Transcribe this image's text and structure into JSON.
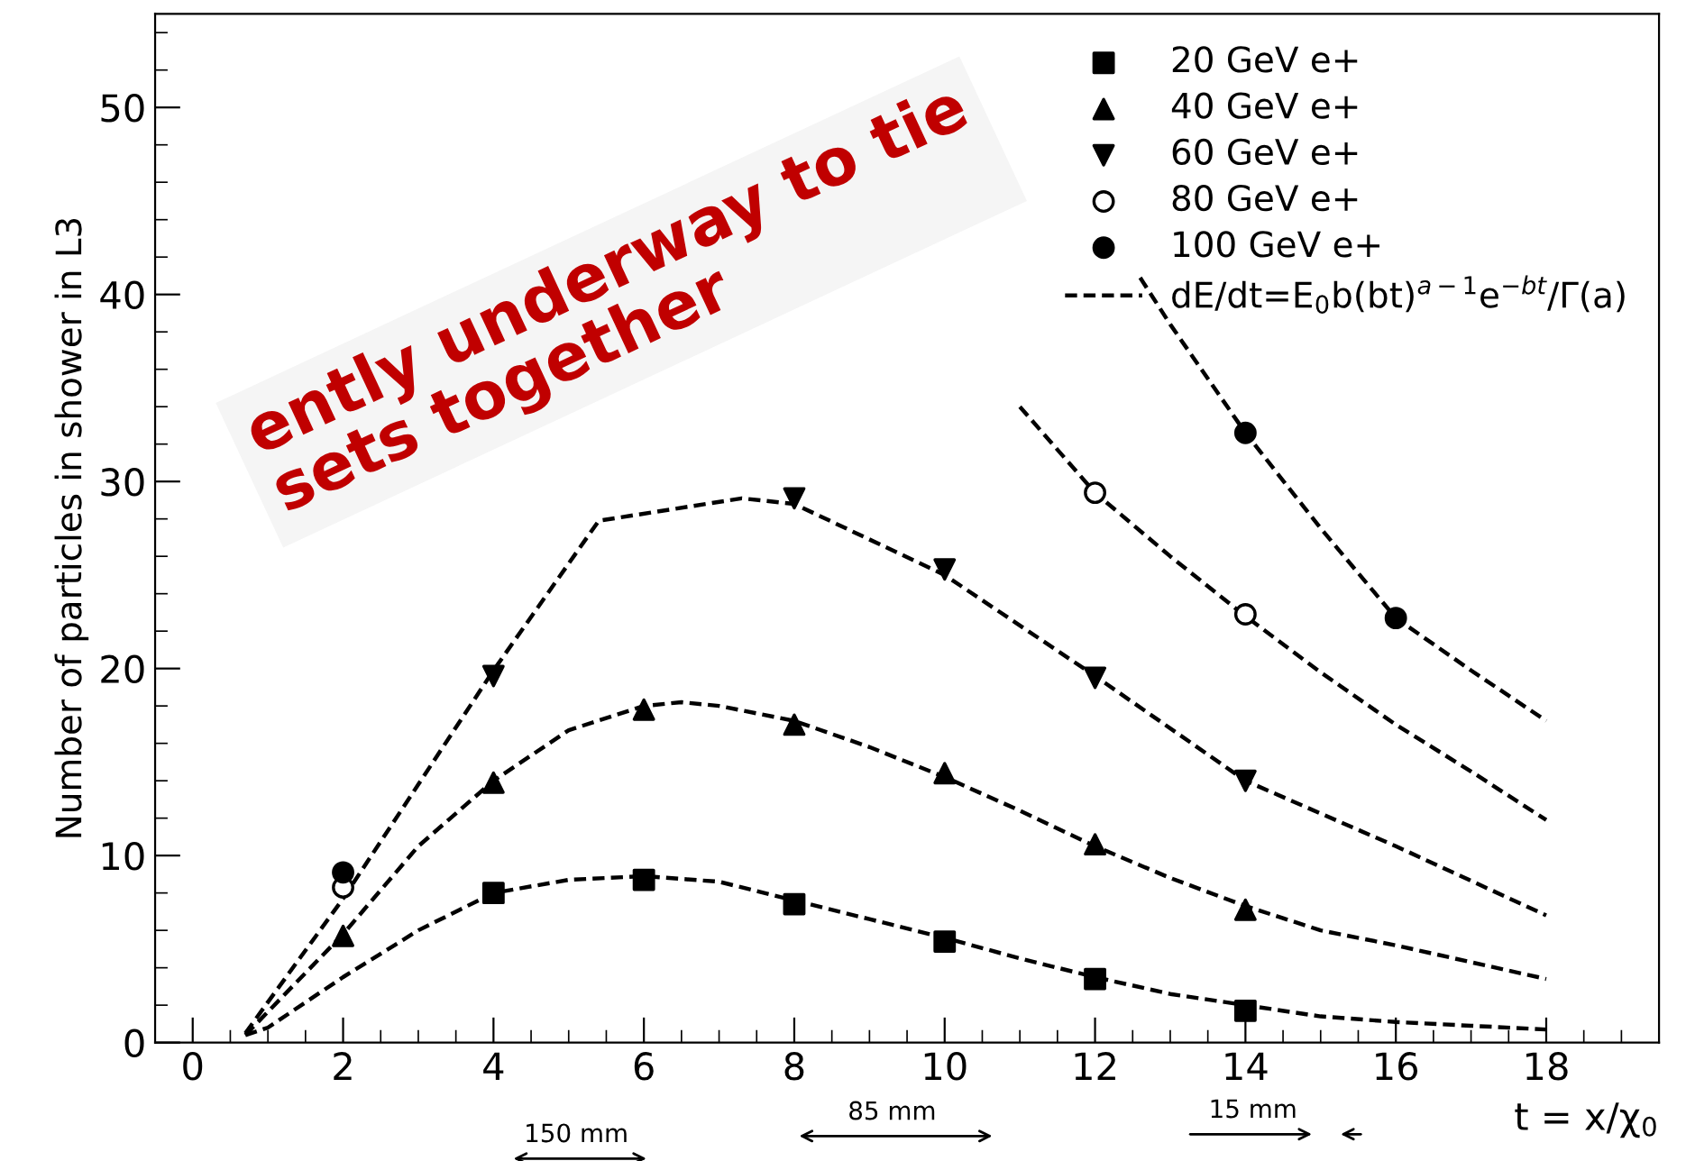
{
  "chart_data": {
    "type": "scatter",
    "ylabel": "Number of particles in shower in L3",
    "xlabel": "t = x/χ$_{0}$",
    "xlim": [
      -0.5,
      19.5
    ],
    "xticks": [
      0,
      2,
      4,
      6,
      8,
      10,
      12,
      14,
      16,
      18
    ],
    "ylim": [
      0,
      55
    ],
    "yticks": [
      0,
      10,
      20,
      30,
      40,
      50
    ],
    "grid": false,
    "legend": "top right",
    "series": [
      {
        "name": "20 GeV e+",
        "marker": "square",
        "color": "#000000",
        "x": [
          4,
          6,
          8,
          10,
          12,
          14
        ],
        "values": [
          8.0,
          8.7,
          7.4,
          5.4,
          3.4,
          1.7
        ]
      },
      {
        "name": "40 GeV e+",
        "marker": "triangle",
        "color": "#000000",
        "x": [
          2,
          4,
          6,
          8,
          10,
          12,
          14
        ],
        "values": [
          5.7,
          13.9,
          17.8,
          17.0,
          14.4,
          10.6,
          7.1
        ]
      },
      {
        "name": "60 GeV e+",
        "marker": "triangle-down",
        "color": "#000000",
        "x": [
          4,
          6,
          8,
          10,
          12,
          14
        ],
        "values": [
          19.6,
          null,
          29.1,
          25.3,
          19.5,
          14.0
        ]
      },
      {
        "name": "80 GeV e+",
        "marker": "open-circle",
        "color": "#000000",
        "x": [
          2,
          4,
          6,
          8,
          10,
          12,
          14
        ],
        "values": [
          8.3,
          null,
          null,
          null,
          null,
          29.4,
          22.9
        ]
      },
      {
        "name": "100 GeV e+",
        "marker": "circle",
        "color": "#000000",
        "x": [
          2,
          4,
          6,
          8,
          10,
          12,
          14,
          16
        ],
        "values": [
          9.1,
          null,
          null,
          null,
          null,
          null,
          32.6,
          22.7
        ]
      },
      {
        "name": "dE/dt=E$_{0}$b(bt)$^{a−1}$e$^{−bt}$/Γ(a)",
        "type": "line",
        "line_style": "dashed",
        "marker": "none",
        "color": "#000000",
        "x": [
          0.7,
          1,
          2,
          3,
          4,
          5,
          6,
          7,
          8,
          9,
          10,
          11,
          12,
          13,
          14,
          15,
          16,
          17,
          18
        ],
        "values": [
          0.4,
          0.8,
          3.5,
          6.0,
          8.0,
          8.7,
          8.9,
          8.6,
          7.6,
          6.6,
          5.6,
          4.5,
          3.5,
          2.6,
          2.0,
          1.4,
          1.1,
          0.9,
          0.7
        ]
      },
      {
        "type": "line",
        "line_style": "dashed",
        "marker": "none",
        "color": "#000000",
        "x": [
          0.7,
          2,
          3,
          4,
          5,
          6,
          6.5,
          7,
          8,
          9,
          10,
          11,
          12,
          13,
          14,
          15,
          16,
          17,
          18
        ],
        "values": [
          0.4,
          5.8,
          10.5,
          14.0,
          16.7,
          18.0,
          18.2,
          18.0,
          17.2,
          15.8,
          14.2,
          12.4,
          10.5,
          8.8,
          7.3,
          6.0,
          5.2,
          4.3,
          3.4
        ]
      },
      {
        "type": "line",
        "line_style": "dashed",
        "marker": "none",
        "color": "#000000",
        "x": [
          0.7,
          2,
          3,
          4,
          5.4,
          7.3,
          8,
          10,
          12,
          14,
          16,
          18
        ],
        "values": [
          0.5,
          7.7,
          13.8,
          19.9,
          27.9,
          29.1,
          28.8,
          25.0,
          19.6,
          14.0,
          10.5,
          6.8
        ]
      },
      {
        "type": "line",
        "line_style": "dashed",
        "marker": "none",
        "color": "#000000",
        "x": [
          11,
          12,
          13,
          14,
          15,
          16,
          17,
          18
        ],
        "values": [
          34.0,
          29.4,
          26.0,
          22.8,
          19.8,
          17.0,
          14.5,
          11.9
        ]
      },
      {
        "type": "line",
        "line_style": "dashed",
        "marker": "none",
        "color": "#000000",
        "x": [
          12.6,
          13,
          14,
          15,
          16,
          17,
          18
        ],
        "values": [
          40.9,
          38.4,
          32.6,
          27.5,
          22.7,
          19.9,
          17.2
        ]
      }
    ],
    "annotations": [
      "150 mm",
      "85 mm",
      "15 mm",
      "ently underway to tie\nsets together"
    ]
  }
}
